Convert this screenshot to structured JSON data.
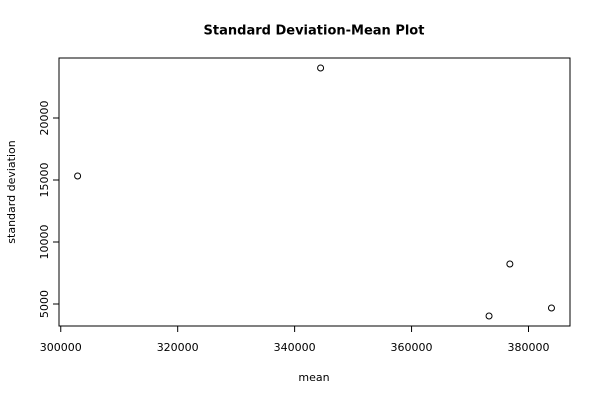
{
  "chart_data": {
    "type": "scatter",
    "title": "Standard Deviation-Mean Plot",
    "x_label": "mean",
    "y_label": "standard deviation",
    "x": [
      302881,
      344441,
      373254,
      376814,
      383932
    ],
    "values": [
      15323,
      24032,
      4032,
      8226,
      4677
    ],
    "color": "#000000",
    "xlim": [
      299700,
      387100
    ],
    "ylim": [
      3226,
      24839
    ],
    "xticks": [
      300000,
      320000,
      340000,
      360000,
      380000
    ],
    "yticks": [
      5000,
      10000,
      15000,
      20000
    ]
  }
}
